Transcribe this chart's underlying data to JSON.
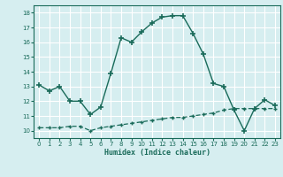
{
  "xlabel": "Humidex (Indice chaleur)",
  "bg_color": "#d6eef0",
  "line_color": "#1a6b5a",
  "grid_color": "#ffffff",
  "x_main": [
    0,
    1,
    2,
    3,
    4,
    5,
    6,
    7,
    8,
    9,
    10,
    11,
    12,
    13,
    14,
    15,
    16,
    17,
    18,
    19,
    20,
    21,
    22,
    23
  ],
  "y_main": [
    13.1,
    12.7,
    13.0,
    12.0,
    12.0,
    11.1,
    11.6,
    13.9,
    16.3,
    16.0,
    16.7,
    17.3,
    17.7,
    17.8,
    17.8,
    16.6,
    15.2,
    13.2,
    13.0,
    11.4,
    10.0,
    11.5,
    12.1,
    11.7
  ],
  "x_flat": [
    0,
    1,
    2,
    3,
    4,
    5,
    6,
    7,
    8,
    9,
    10,
    11,
    12,
    13,
    14,
    15,
    16,
    17,
    18,
    19,
    20,
    21,
    22,
    23
  ],
  "y_flat": [
    10.2,
    10.2,
    10.2,
    10.3,
    10.3,
    10.0,
    10.2,
    10.3,
    10.4,
    10.5,
    10.6,
    10.7,
    10.8,
    10.9,
    10.9,
    11.0,
    11.1,
    11.2,
    11.4,
    11.5,
    11.5,
    11.5,
    11.5,
    11.5
  ],
  "ylim": [
    9.5,
    18.5
  ],
  "xlim": [
    -0.5,
    23.5
  ],
  "yticks": [
    10,
    11,
    12,
    13,
    14,
    15,
    16,
    17,
    18
  ],
  "xticks": [
    0,
    1,
    2,
    3,
    4,
    5,
    6,
    7,
    8,
    9,
    10,
    11,
    12,
    13,
    14,
    15,
    16,
    17,
    18,
    19,
    20,
    21,
    22,
    23
  ]
}
